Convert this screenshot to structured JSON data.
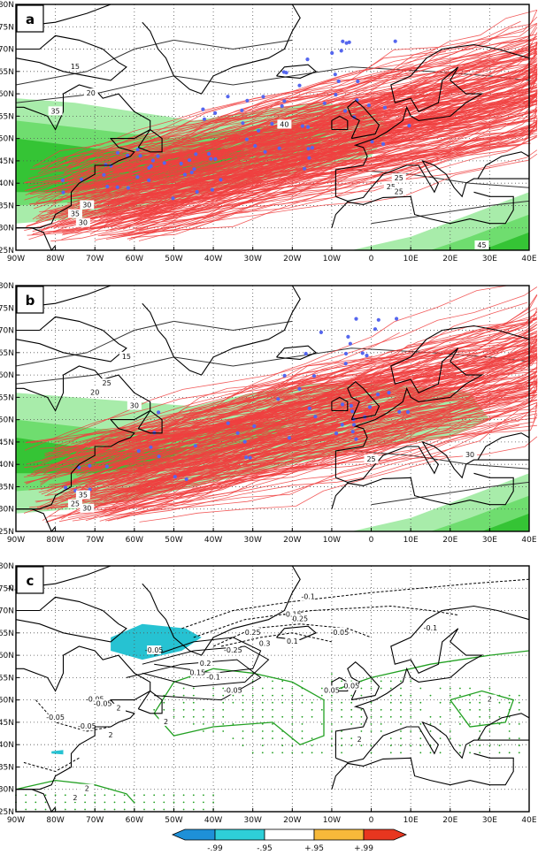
{
  "panels": [
    {
      "label": "a",
      "lat_labels": [
        "80N",
        "75N",
        "70N",
        "65N",
        "60N",
        "55N",
        "50N",
        "45N",
        "40N",
        "35N",
        "30N",
        "25N"
      ],
      "lon_labels": [
        "90W",
        "80W",
        "70W",
        "60W",
        "50W",
        "40W",
        "30W",
        "20W",
        "10W",
        "0",
        "10E",
        "20E",
        "30E",
        "40E"
      ],
      "contour_labels": [
        "20",
        "35",
        "40",
        "15",
        "25",
        "30",
        "35",
        "30",
        "25",
        "25",
        "45"
      ]
    },
    {
      "label": "b",
      "lat_labels": [
        "80N",
        "75N",
        "70N",
        "65N",
        "60N",
        "55N",
        "50N",
        "45N",
        "40N",
        "35N",
        "30N",
        "25N"
      ],
      "lon_labels": [
        "90W",
        "80W",
        "70W",
        "60W",
        "50W",
        "40W",
        "30W",
        "20W",
        "10W",
        "0",
        "10E",
        "20E",
        "30E",
        "40E"
      ],
      "contour_labels": [
        "15",
        "20",
        "25",
        "30",
        "30",
        "35",
        "30",
        "25",
        "25"
      ]
    },
    {
      "label": "c",
      "lat_labels": [
        "80N",
        "75N",
        "70N",
        "65N",
        "60N",
        "55N",
        "50N",
        "45N",
        "40N",
        "35N",
        "30N",
        "25N"
      ],
      "lon_labels": [
        "90W",
        "80W",
        "70W",
        "60W",
        "50W",
        "40W",
        "30W",
        "20W",
        "10W",
        "0",
        "10E",
        "20E",
        "30E",
        "40E"
      ],
      "contour_labels": [
        "-0.05",
        "-0.05",
        "-0.1",
        "-0.15",
        "-0.05",
        "-0.1",
        "0.25",
        "0.1",
        "0.3",
        "0.25",
        "0.2",
        "0.15",
        "-0.25",
        "-0.05",
        "-0.1",
        "-0.05",
        "0.05",
        "-0.05",
        "-0.05",
        "-0.05",
        "0.05",
        "2",
        "2",
        "2",
        "2",
        "2",
        "2",
        "2"
      ]
    }
  ],
  "colorbar": {
    "labels": [
      "-.99",
      "-.95",
      "+.95",
      "+.99"
    ],
    "colors": [
      "#1e90d8",
      "#2ecfd8",
      "#ffffff",
      "#f7b93a",
      "#e8361f"
    ]
  },
  "colors": {
    "track": "#f04040",
    "genesis_dot": "#5566ee",
    "shade_light": "#a8ecaa",
    "shade_mid": "#6fdd6f",
    "shade_dark": "#35c435",
    "sig_contour": "#22a022",
    "neg_fill": "#26c2d2"
  }
}
